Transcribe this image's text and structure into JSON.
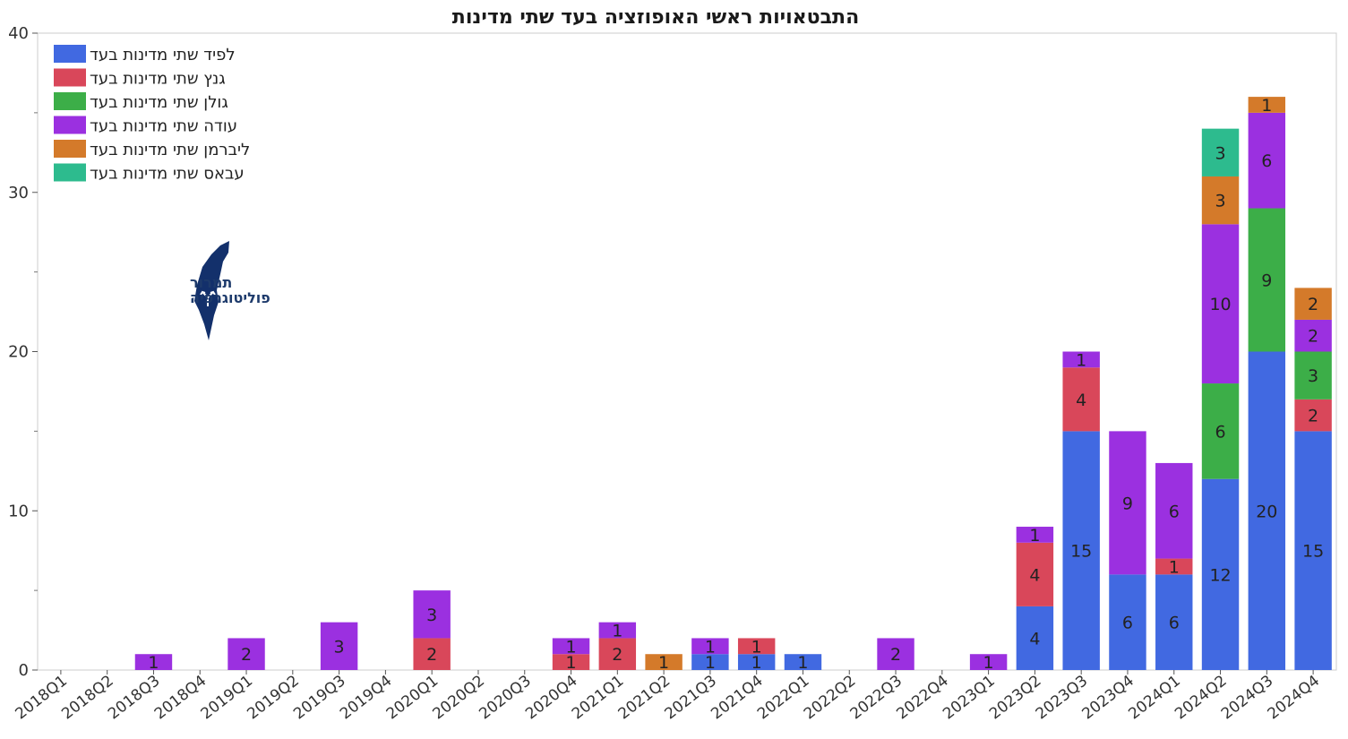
{
  "chart_data": {
    "type": "bar",
    "stacked": true,
    "title": "התבטאויות ראשי האופוזציה בעד שתי מדינות",
    "xlabel": "",
    "ylabel": "",
    "ylim": [
      0,
      40
    ],
    "yticks": [
      0,
      10,
      20,
      30,
      40
    ],
    "grid": false,
    "legend_position": "top-left",
    "categories": [
      "2018Q1",
      "2018Q2",
      "2018Q3",
      "2018Q4",
      "2019Q1",
      "2019Q2",
      "2019Q3",
      "2019Q4",
      "2020Q1",
      "2020Q2",
      "2020Q3",
      "2020Q4",
      "2021Q1",
      "2021Q2",
      "2021Q3",
      "2021Q4",
      "2022Q1",
      "2022Q2",
      "2022Q3",
      "2022Q4",
      "2023Q1",
      "2023Q2",
      "2023Q3",
      "2023Q4",
      "2024Q1",
      "2024Q2",
      "2024Q3",
      "2024Q4"
    ],
    "series": [
      {
        "name": "לפיד שתי מדינות בעד",
        "color": "#4169e1",
        "values": [
          0,
          0,
          0,
          0,
          0,
          0,
          0,
          0,
          0,
          0,
          0,
          0,
          0,
          0,
          1,
          1,
          1,
          0,
          0,
          0,
          0,
          4,
          15,
          6,
          6,
          12,
          20,
          15
        ]
      },
      {
        "name": "גנץ שתי מדינות בעד",
        "color": "#d9475a",
        "values": [
          0,
          0,
          0,
          0,
          0,
          0,
          0,
          0,
          2,
          0,
          0,
          1,
          2,
          0,
          0,
          1,
          0,
          0,
          0,
          0,
          0,
          4,
          4,
          0,
          1,
          0,
          0,
          2
        ]
      },
      {
        "name": "גולן שתי מדינות בעד",
        "color": "#3cae48",
        "values": [
          0,
          0,
          0,
          0,
          0,
          0,
          0,
          0,
          0,
          0,
          0,
          0,
          0,
          0,
          0,
          0,
          0,
          0,
          0,
          0,
          0,
          0,
          0,
          0,
          0,
          6,
          9,
          3
        ]
      },
      {
        "name": "עודה שתי מדינות בעד",
        "color": "#9b30e0",
        "values": [
          0,
          0,
          1,
          0,
          2,
          0,
          3,
          0,
          3,
          0,
          0,
          1,
          1,
          0,
          1,
          0,
          0,
          0,
          2,
          0,
          1,
          1,
          1,
          9,
          6,
          10,
          6,
          2
        ]
      },
      {
        "name": "ליברמן  שתי מדינות בעד",
        "color": "#d47a2a",
        "values": [
          0,
          0,
          0,
          0,
          0,
          0,
          0,
          0,
          0,
          0,
          0,
          0,
          0,
          1,
          0,
          0,
          0,
          0,
          0,
          0,
          0,
          0,
          0,
          0,
          0,
          3,
          1,
          2
        ]
      },
      {
        "name": "עבאס שתי מדינות בעד",
        "color": "#2dbb8e",
        "values": [
          0,
          0,
          0,
          0,
          0,
          0,
          0,
          0,
          0,
          0,
          0,
          0,
          0,
          0,
          0,
          0,
          0,
          0,
          0,
          0,
          0,
          0,
          0,
          0,
          0,
          3,
          0,
          0
        ]
      }
    ]
  },
  "logo": {
    "line1": "תמרור",
    "line2": "פוליטוגרפיה",
    "color": "#13306b"
  }
}
